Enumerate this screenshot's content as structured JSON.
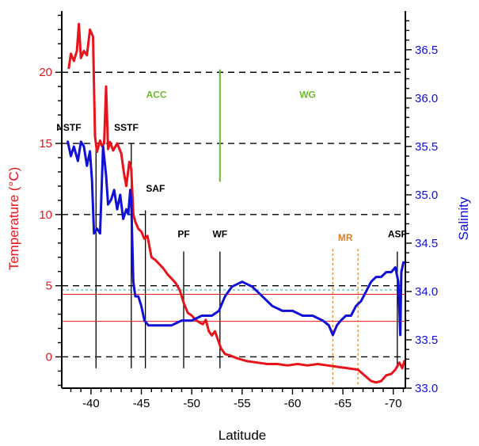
{
  "chart_data": {
    "type": "line",
    "title": "",
    "xlabel": "Latitude",
    "ylabel_left": "Temperature (°C)",
    "ylabel_right": "Salinity",
    "xlim": [
      -37.1,
      -71.2
    ],
    "ylim_left": [
      -2.2,
      24.3
    ],
    "ylim_right": [
      33.0,
      36.9
    ],
    "x_ticks": [
      -40,
      -45,
      -50,
      -55,
      -60,
      -65,
      -70
    ],
    "y_ticks_left": [
      0,
      5,
      10,
      15,
      20
    ],
    "y_ticks_right": [
      33.0,
      33.5,
      34.0,
      34.5,
      35.0,
      35.5,
      36.0,
      36.5
    ],
    "colors": {
      "temperature": "#e8141b",
      "salinity": "#1010d6",
      "acc_wg": "#6cbd2c",
      "mr": "#d9822b",
      "fronts": "#000000",
      "grid": "#000000"
    },
    "reference_lines": {
      "dashed_temperature": [
        0,
        5,
        10,
        15,
        20
      ],
      "dashed_cyan_temperature": 4.7,
      "red_solid_temperature": [
        4.4,
        2.5
      ]
    },
    "regions": [
      {
        "label": "ACC",
        "x": -46.5,
        "y_label": 18.2
      },
      {
        "label": "WG",
        "x": -61.5,
        "y_label": 18.2
      }
    ],
    "acc_wg_divider": {
      "x": -52.8,
      "y_top": 20.2,
      "y_bottom": 12.3
    },
    "mr_lines": {
      "label": "MR",
      "x": [
        -64.0,
        -66.5
      ],
      "y_top": 7.6,
      "y_bottom": -2.1
    },
    "fronts": [
      {
        "name": "NSTF",
        "x": -40.5,
        "label_y": 15.9,
        "label_x": -37.8,
        "top": 15.0,
        "bottom": -0.8
      },
      {
        "name": "SSTF",
        "x": -44.0,
        "label_y": 15.9,
        "label_x": -43.5,
        "top": 15.0,
        "bottom": -0.8
      },
      {
        "name": "SAF",
        "x": -45.4,
        "label_y": 11.6,
        "label_x": -46.4,
        "top": 10.3,
        "bottom": -0.8
      },
      {
        "name": "PF",
        "x": -49.2,
        "label_y": 8.4,
        "label_x": -49.2,
        "top": 7.4,
        "bottom": -0.8
      },
      {
        "name": "WF",
        "x": -52.8,
        "label_y": 8.4,
        "label_x": -52.8,
        "top": 7.4,
        "bottom": -0.8
      },
      {
        "name": "ASF",
        "x": -70.4,
        "label_y": 8.4,
        "label_x": -70.4,
        "top": 7.4,
        "bottom": -0.8
      }
    ],
    "series": [
      {
        "name": "Temperature",
        "axis": "left",
        "x": [
          -37.8,
          -38.0,
          -38.3,
          -38.6,
          -38.8,
          -39.0,
          -39.3,
          -39.6,
          -39.9,
          -40.2,
          -40.4,
          -40.6,
          -40.9,
          -41.1,
          -41.3,
          -41.5,
          -41.7,
          -41.9,
          -42.2,
          -42.6,
          -43.0,
          -43.3,
          -43.5,
          -43.8,
          -44.0,
          -44.2,
          -44.4,
          -44.7,
          -45.0,
          -45.3,
          -45.6,
          -46.0,
          -46.4,
          -46.8,
          -47.2,
          -47.6,
          -48.0,
          -48.4,
          -48.8,
          -49.2,
          -49.6,
          -50.0,
          -50.4,
          -50.8,
          -51.1,
          -51.4,
          -51.7,
          -52.0,
          -52.3,
          -52.6,
          -52.9,
          -53.3,
          -53.8,
          -54.5,
          -55.5,
          -56.5,
          -57.5,
          -58.5,
          -59.5,
          -60.5,
          -61.5,
          -62.5,
          -63.5,
          -64.5,
          -65.5,
          -66.5,
          -67.3,
          -67.8,
          -68.3,
          -68.8,
          -69.3,
          -69.8,
          -70.2,
          -70.6,
          -70.9,
          -71.1
        ],
        "y": [
          20.3,
          21.3,
          20.8,
          21.5,
          23.4,
          21.0,
          21.5,
          21.2,
          23.0,
          22.5,
          15.5,
          14.4,
          15.2,
          14.8,
          15.0,
          19.0,
          14.6,
          15.1,
          14.5,
          15.0,
          14.3,
          12.8,
          12.0,
          13.7,
          13.2,
          10.0,
          9.5,
          9.0,
          8.8,
          8.3,
          8.5,
          7.0,
          6.8,
          6.5,
          6.2,
          5.8,
          5.5,
          5.2,
          4.7,
          3.8,
          3.1,
          2.9,
          2.6,
          2.4,
          2.3,
          2.6,
          1.8,
          1.5,
          1.8,
          1.2,
          0.6,
          0.2,
          0.1,
          -0.1,
          -0.3,
          -0.4,
          -0.5,
          -0.5,
          -0.6,
          -0.5,
          -0.6,
          -0.5,
          -0.6,
          -0.7,
          -0.8,
          -0.9,
          -1.4,
          -1.7,
          -1.8,
          -1.7,
          -1.3,
          -1.2,
          -0.9,
          -0.4,
          -0.8,
          -0.3
        ]
      },
      {
        "name": "Salinity",
        "axis": "right",
        "x": [
          -37.7,
          -38.0,
          -38.3,
          -38.7,
          -39.0,
          -39.3,
          -39.6,
          -39.9,
          -40.1,
          -40.3,
          -40.6,
          -40.9,
          -41.2,
          -41.5,
          -41.7,
          -42.0,
          -42.3,
          -42.6,
          -42.9,
          -43.2,
          -43.5,
          -43.7,
          -43.9,
          -44.0,
          -44.1,
          -44.2,
          -44.4,
          -44.7,
          -45.0,
          -45.3,
          -45.7,
          -46.2,
          -47.0,
          -48.0,
          -49.0,
          -50.0,
          -51.0,
          -52.0,
          -52.7,
          -53.3,
          -54.0,
          -55.0,
          -56.0,
          -57.0,
          -58.0,
          -59.0,
          -60.0,
          -61.0,
          -62.0,
          -63.0,
          -63.6,
          -64.0,
          -64.4,
          -64.8,
          -65.3,
          -65.8,
          -66.3,
          -66.8,
          -67.3,
          -67.8,
          -68.3,
          -68.8,
          -69.3,
          -69.8,
          -70.2,
          -70.5,
          -70.7,
          -70.8,
          -70.9,
          -71.0,
          -71.1
        ],
        "y": [
          35.55,
          35.4,
          35.5,
          35.35,
          35.55,
          35.5,
          35.3,
          35.45,
          35.15,
          34.6,
          34.65,
          34.6,
          35.5,
          35.2,
          34.9,
          34.95,
          35.05,
          34.85,
          35.0,
          34.75,
          34.85,
          34.8,
          35.05,
          34.95,
          34.5,
          34.1,
          33.95,
          33.95,
          33.85,
          33.7,
          33.65,
          33.65,
          33.65,
          33.65,
          33.7,
          33.7,
          33.75,
          33.75,
          33.8,
          33.95,
          34.05,
          34.1,
          34.05,
          33.95,
          33.85,
          33.8,
          33.8,
          33.75,
          33.75,
          33.7,
          33.65,
          33.55,
          33.65,
          33.7,
          33.75,
          33.75,
          33.85,
          33.9,
          34.0,
          34.1,
          34.15,
          34.15,
          34.2,
          34.2,
          34.25,
          34.1,
          33.55,
          34.2,
          34.25,
          34.3,
          34.3
        ]
      }
    ]
  }
}
